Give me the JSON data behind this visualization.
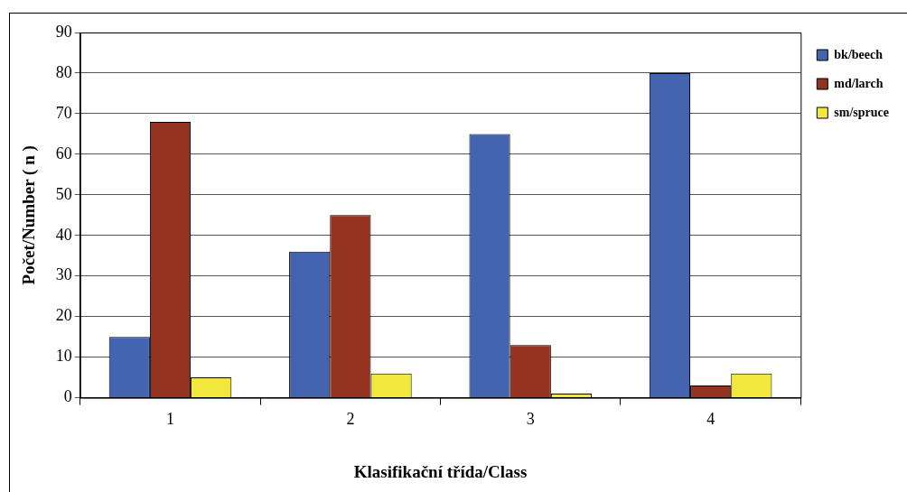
{
  "chart_data": {
    "type": "bar",
    "xlabel": "Klasifikační třída/Class",
    "ylabel": "Počet/Number ( n )",
    "categories": [
      "1",
      "2",
      "3",
      "4"
    ],
    "series": [
      {
        "name": "bk/beech",
        "color": "#4564b0",
        "values": [
          15,
          36,
          65,
          80
        ]
      },
      {
        "name": "md/larch",
        "color": "#943420",
        "values": [
          68,
          45,
          13,
          3
        ]
      },
      {
        "name": "sm/spruce",
        "color": "#f2e73c",
        "values": [
          5,
          6,
          1,
          6
        ]
      }
    ],
    "ylim": [
      0,
      90
    ],
    "yticks": [
      0,
      10,
      20,
      30,
      40,
      50,
      60,
      70,
      80,
      90
    ],
    "grid": "y",
    "legend": "right"
  }
}
